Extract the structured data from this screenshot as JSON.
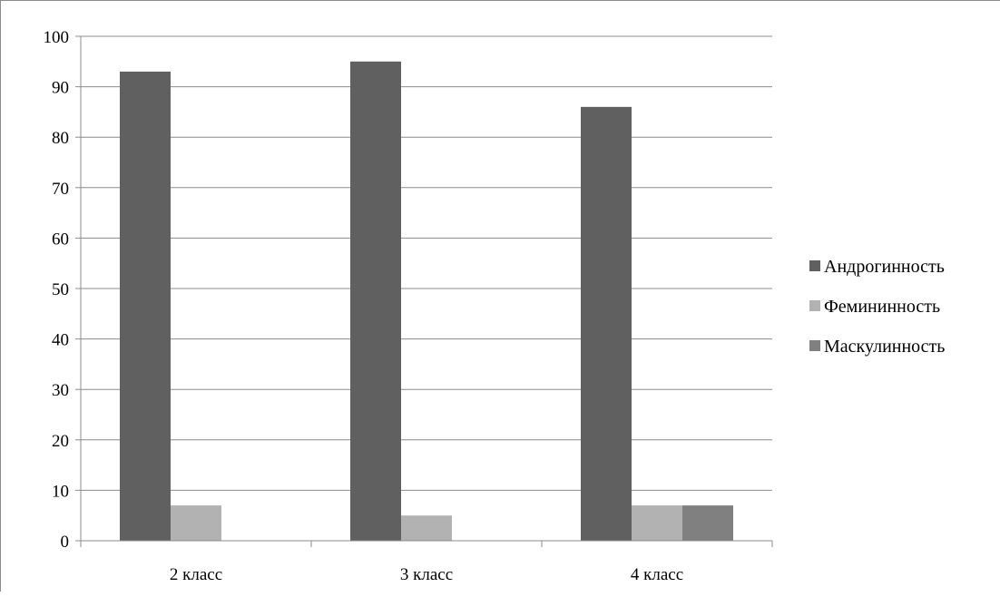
{
  "chart_data": {
    "type": "bar",
    "title": "",
    "xlabel": "",
    "ylabel": "",
    "categories": [
      "2 класс",
      "3 класс",
      "4 класс"
    ],
    "ylim": [
      0,
      100
    ],
    "yticks": [
      "0",
      "10",
      "20",
      "30",
      "40",
      "50",
      "60",
      "70",
      "80",
      "90",
      "100"
    ],
    "grid": true,
    "legend_position": "right",
    "series": [
      {
        "name": "Андрогинность",
        "color": "#606060",
        "values": [
          93,
          95,
          86
        ]
      },
      {
        "name": "Фемининность",
        "color": "#b2b2b2",
        "values": [
          7,
          5,
          7
        ]
      },
      {
        "name": "Маскулинность",
        "color": "#808080",
        "values": [
          0,
          0,
          7
        ]
      }
    ]
  }
}
